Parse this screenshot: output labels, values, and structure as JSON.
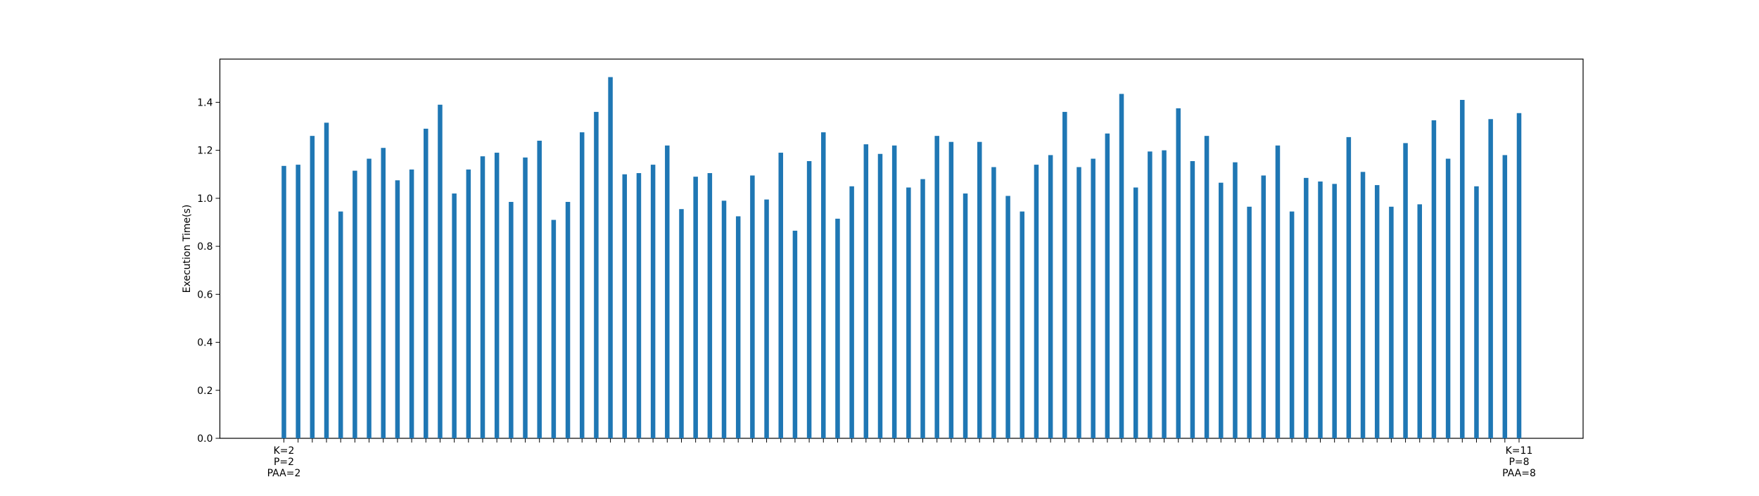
{
  "chart_data": {
    "type": "bar",
    "title": "",
    "xlabel": "",
    "ylabel": "Execution Time(s)",
    "ylim": [
      0,
      1.58
    ],
    "yticks": [
      "0.0",
      "0.2",
      "0.4",
      "0.6",
      "0.8",
      "1.0",
      "1.2",
      "1.4"
    ],
    "grid": false,
    "bar_color": "#1f77b4",
    "first_category_label": [
      "K=2",
      "P=2",
      "PAA=2"
    ],
    "last_category_label": [
      "K=11",
      "P=8",
      "PAA=8"
    ],
    "values": [
      1.135,
      1.14,
      1.26,
      1.315,
      0.945,
      1.115,
      1.165,
      1.21,
      1.075,
      1.12,
      1.29,
      1.39,
      1.02,
      1.12,
      1.175,
      1.19,
      0.985,
      1.17,
      1.24,
      0.91,
      0.985,
      1.275,
      1.36,
      1.505,
      1.1,
      1.105,
      1.14,
      1.22,
      0.955,
      1.09,
      1.105,
      0.99,
      0.925,
      1.095,
      0.995,
      1.19,
      0.865,
      1.155,
      1.275,
      0.915,
      1.05,
      1.225,
      1.185,
      1.22,
      1.045,
      1.08,
      1.26,
      1.235,
      1.02,
      1.235,
      1.13,
      1.01,
      0.945,
      1.14,
      1.18,
      1.36,
      1.13,
      1.165,
      1.27,
      1.435,
      1.045,
      1.195,
      1.2,
      1.375,
      1.155,
      1.26,
      1.065,
      1.15,
      0.965,
      1.095,
      1.22,
      0.945,
      1.085,
      1.07,
      1.06,
      1.255,
      1.11,
      1.055,
      0.965,
      1.23,
      0.975,
      1.325,
      1.165,
      1.41,
      1.05,
      1.33,
      1.18,
      1.355
    ]
  }
}
